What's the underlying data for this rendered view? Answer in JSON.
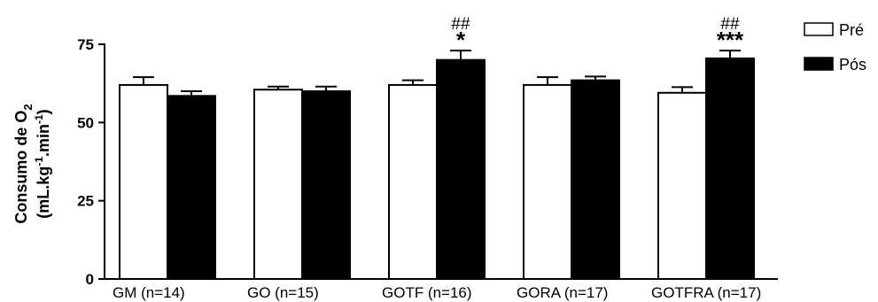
{
  "chart_data": {
    "type": "bar",
    "categories": [
      "GM (n=14)",
      "GO (n=15)",
      "GOTF (n=16)",
      "GORA (n=17)",
      "GOTFRA (n=17)"
    ],
    "series": [
      {
        "name": "Pré",
        "color": "#ffffff",
        "values": [
          62,
          60.5,
          62,
          62,
          59.5
        ],
        "errors": [
          2.5,
          1.0,
          1.5,
          2.5,
          1.8
        ]
      },
      {
        "name": "Pós",
        "color": "#000000",
        "values": [
          58.5,
          60,
          70,
          63.5,
          70.5
        ],
        "errors": [
          1.5,
          1.5,
          3.0,
          1.2,
          2.5
        ]
      }
    ],
    "ylabel_line1": "Consumo de O",
    "ylabel_sub": "2",
    "ylabel_line2": "(mL.kg",
    "ylabel_exp1": "-1",
    "ylabel_mid": ".min",
    "ylabel_exp2": "-1",
    "ylabel_end": ")",
    "ylim": [
      0,
      75
    ],
    "yticks": [
      0,
      25,
      50,
      75
    ],
    "legend_position": "top-right",
    "annotations": [
      {
        "category": "GOTF (n=16)",
        "series": "Pós",
        "lines": [
          "##",
          "*"
        ]
      },
      {
        "category": "GOTFRA (n=17)",
        "series": "Pós",
        "lines": [
          "##",
          "***"
        ]
      }
    ]
  }
}
